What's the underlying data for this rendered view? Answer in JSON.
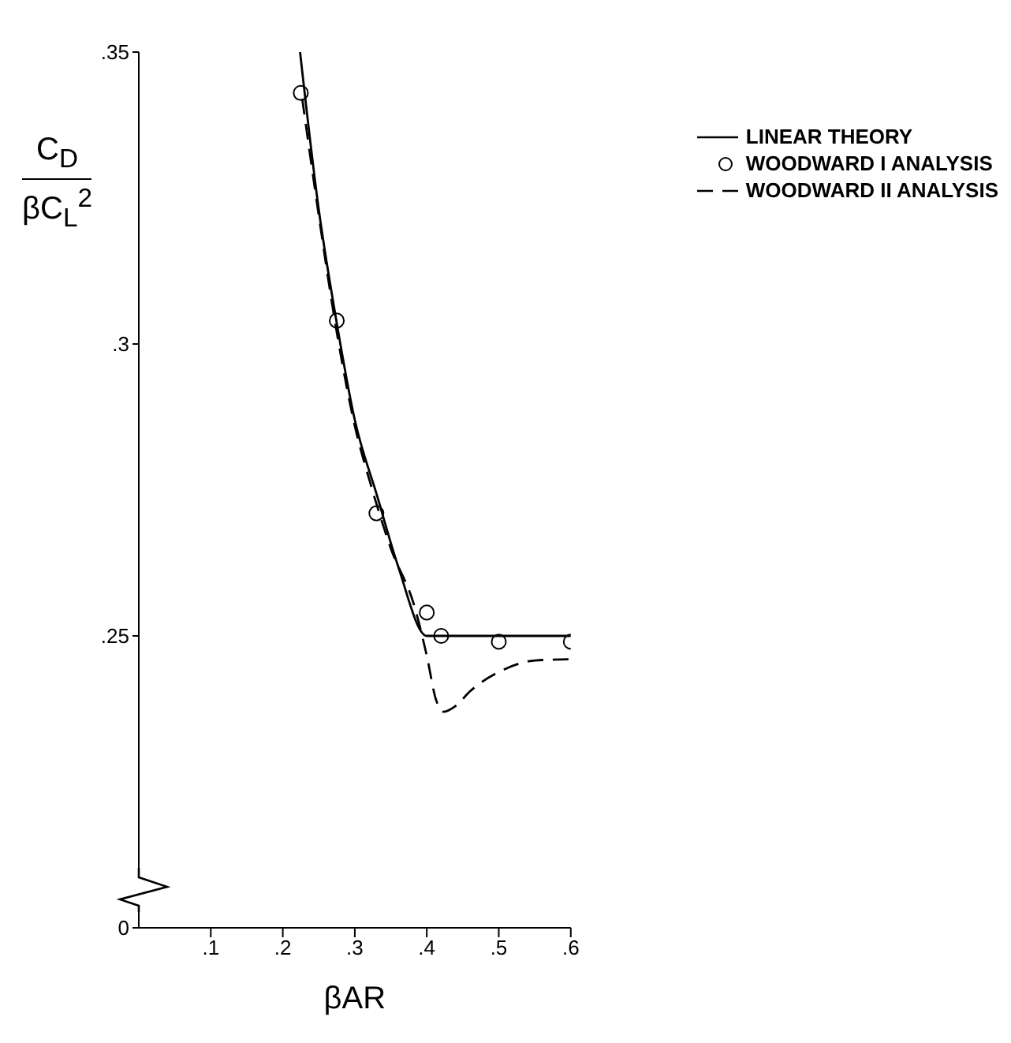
{
  "chart_data": {
    "type": "line",
    "xlabel": "βAR",
    "ylabel": "C$_{D}$ βC$_{L}$$^{2}$",
    "xlim": [
      0,
      0.6
    ],
    "xticks": [
      {
        "value": 0.1,
        "label": ".1"
      },
      {
        "value": 0.2,
        "label": ".2"
      },
      {
        "value": 0.3,
        "label": ".3"
      },
      {
        "value": 0.4,
        "label": ".4"
      },
      {
        "value": 0.5,
        "label": ".5"
      },
      {
        "value": 0.6,
        "label": ".6"
      }
    ],
    "ylim": [
      0.2,
      0.35
    ],
    "yticks": [
      {
        "value": 0.2,
        "label": "0"
      },
      {
        "value": 0.25,
        "label": ".25"
      },
      {
        "value": 0.3,
        "label": ".3"
      },
      {
        "value": 0.35,
        "label": ".35"
      }
    ],
    "legend": "top right",
    "grid": false,
    "series": [
      {
        "name": "LINEAR THEORY",
        "line_style": "solid",
        "marker": "none",
        "color": "#000000",
        "x": [
          0.224,
          0.25,
          0.273,
          0.3,
          0.331,
          0.36,
          0.4,
          0.6
        ],
        "values": [
          0.35,
          0.323,
          0.305,
          0.287,
          0.274,
          0.262,
          0.25,
          0.25
        ]
      },
      {
        "name": "WOODWARD I ANALYSIS",
        "type": "scatter",
        "marker": "circle",
        "color": "#000000",
        "x": [
          0.225,
          0.275,
          0.33,
          0.4,
          0.42,
          0.5,
          0.6
        ],
        "values": [
          0.343,
          0.304,
          0.271,
          0.254,
          0.25,
          0.249,
          0.249
        ]
      },
      {
        "name": "WOODWARD II ANALYSIS",
        "line_style": "dashed",
        "marker": "none",
        "color": "#000000",
        "x": [
          0.227,
          0.25,
          0.275,
          0.3,
          0.322,
          0.35,
          0.383,
          0.4,
          0.413,
          0.423,
          0.44,
          0.46,
          0.503,
          0.551,
          0.598
        ],
        "values": [
          0.342,
          0.322,
          0.302,
          0.286,
          0.276,
          0.265,
          0.255,
          0.2466,
          0.239,
          0.237,
          0.238,
          0.2405,
          0.244,
          0.2458,
          0.246
        ]
      }
    ]
  }
}
